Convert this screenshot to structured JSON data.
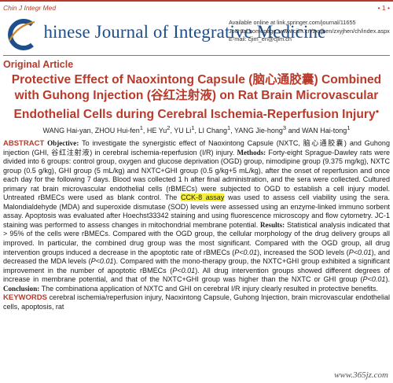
{
  "header": {
    "journal_abbr": "Chin J Integr Med",
    "page_number": "• 1 •",
    "journal_title_first": "C",
    "journal_title_rest": "hinese Journal of Integrative Medicine",
    "available_online": "Available online at link.springer.com/journal/11655",
    "homepage": "Journal homepage: www.cjim.cn/zxyjhen/zxyjhen/ch/index.aspx",
    "email": "E-mail: cjim_en@cjim.cn"
  },
  "section_label": "Original Article",
  "title": {
    "part1": "Protective Effect of Naoxintong Capsule (脑心通胶囊) Combined",
    "part2": "with Guhong Injection (谷红注射液) on Rat Brain Microvascular",
    "part3": "Endothelial Cells during Cerebral Ischemia-Reperfusion Injury",
    "mark": "●"
  },
  "authors": {
    "a1": "WANG Hai-yan",
    "a2": "ZHOU Hui-fen",
    "a2_sup": "1",
    "a3": "HE Yu",
    "a3_sup": "2",
    "a4": "YU Li",
    "a4_sup": "1",
    "a5": "LI Chang",
    "a5_sup": "1",
    "a6": "YANG Jie-hong",
    "a6_sup": "3",
    "a7": "WAN Hai-tong",
    "a7_sup": "1",
    "sep": ", ",
    "and": " and "
  },
  "abstract": {
    "label": "ABSTRACT",
    "objective_label": "Objective:",
    "objective": " To investigate the synergistic effect of Naoxintong Capsule (NXTC, 脑心通胶囊) and Guhong injection (GHI, 谷红注射液) in cerebral ischemia-reperfusion (I/R) injury. ",
    "methods_label": "Methods:",
    "methods_a": " Forty-eight Sprague-Dawley rats were divided into 6 groups: control group, oxygen and glucose deprivation (OGD) group, nimodipine group (9.375 mg/kg), NXTC group (0.5 g/kg), GHI group (5 mL/kg) and NXTC+GHI group (0.5 g/kg+5 mL/kg), after the onset of reperfusion and once each day for the following 7 days. Blood was collected 1 h after final administration, and the sera were collected. Cultured primary rat brain microvascular endothelial cells (rBMECs) were subjected to OGD to establish a cell injury model. Untreated rBMECs were used as blank control. The ",
    "methods_highlight": "CCK-8 assay",
    "methods_b": " was used to assess cell viability using the sera. Malondialdehyde (MDA) and superoxide dismutase (SOD) levels were assessed using an enzyme-linked immuno sorbent assay. Apoptosis was evaluated after Hoechst33342 staining and using fluorescence microscopy and flow cytometry. JC-1 staining was performed to assess changes in mitochondrial membrane potential. ",
    "results_label": "Results:",
    "results_a": " Statistical analysis indicated that > 95% of the cells were rBMECs. Compared with the OGD group, the cellular morphology of the drug delivery groups all improved. In particular, the combined drug group was the most significant. Compared with the OGD group, all drug intervention groups induced a decrease in the apoptotic rate of rBMECs (",
    "p1": "P<0.01",
    "results_b": "), increased the SOD levels (",
    "p2": "P<0.01",
    "results_c": "), and decreased the MDA levels (",
    "p3": "P<0.01",
    "results_d": "). Compared with the mono-therapy group, the NXTC+GHI group exhibited a significant improvement in the number of apoptotic rBMECs (",
    "p4": "P<0.01",
    "results_e": "). All drug intervention groups showed different degrees of increase in membrane potential, and that of the NXTC+GHI group was higher than the NXTC or GHI group (",
    "p5": "P<0.01",
    "results_f": "). ",
    "conclusion_label": "Conclusion:",
    "conclusion": " The combinationa application of NXTC and GHI on cerebral I/R injury clearly resulted in protective benefits."
  },
  "keywords": {
    "label": "KEYWORDS",
    "text": "   cerebral ischemia/reperfusion injury, Naoxintong Capsule, Guhong Injection, brain microvascular endothelial cells, apoptosis, rat"
  },
  "watermark": "www.365jz.com",
  "colors": {
    "accent_red": "#b83a2a",
    "journal_blue": "#1e4f8c",
    "highlight": "#f5ef3c"
  }
}
